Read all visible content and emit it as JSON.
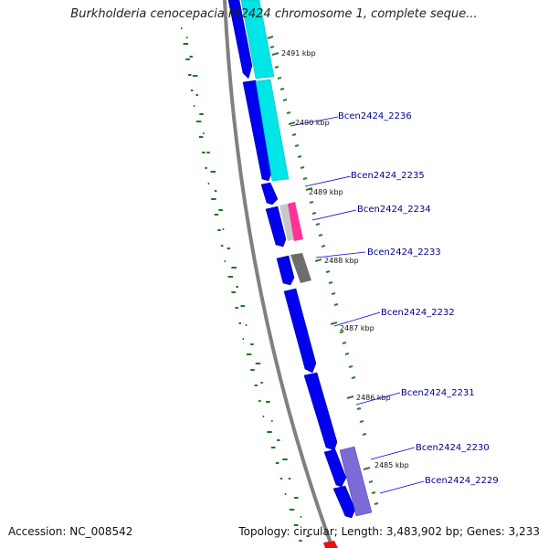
{
  "title": "Burkholderia cenocepacia HI2424 chromosome 1, complete seque...",
  "footer": {
    "accession": "Accession: NC_008542",
    "summary": "Topology: circular; Length: 3,483,902 bp; Genes: 3,233"
  },
  "scale_labels": [
    "2491 kbp",
    "2490 kbp",
    "2489 kbp",
    "2488 kbp",
    "2487 kbp",
    "2486 kbp",
    "2485 kbp"
  ],
  "gene_labels": [
    "Bcen2424_2236",
    "Bcen2424_2235",
    "Bcen2424_2234",
    "Bcen2424_2233",
    "Bcen2424_2232",
    "Bcen2424_2231",
    "Bcen2424_2230",
    "Bcen2424_2229"
  ],
  "colors": {
    "cds": "#0000ee",
    "blast_hit": "#00e5e5",
    "backbone": "#808080",
    "gc_dots": "#1a7a1a",
    "tick": "#2e7d2e",
    "label_line": "#0000cc",
    "pink": "#ff3399",
    "gray_feature": "#6d6d6d",
    "lavender": "#7b6bd6",
    "red": "#ee1111"
  }
}
